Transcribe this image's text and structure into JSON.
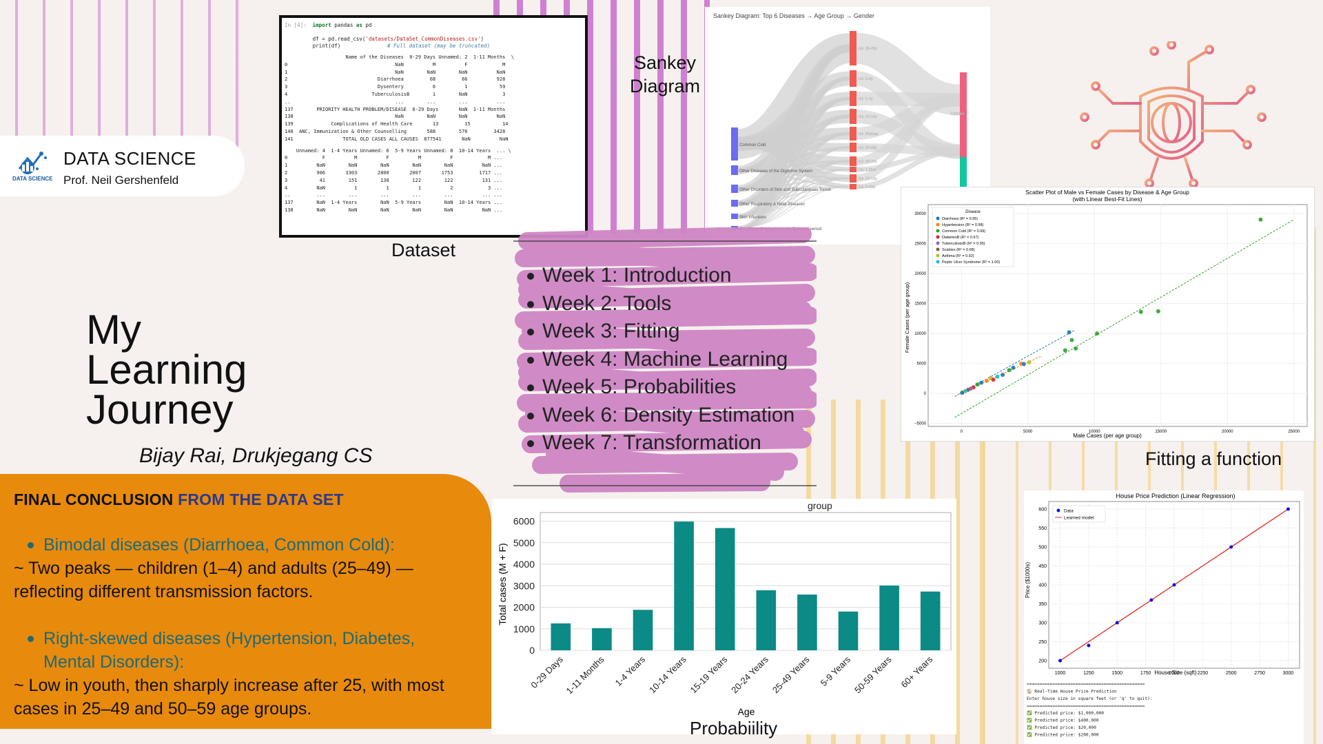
{
  "brand": {
    "name": "DATA SCIENCE",
    "professor": "Prof. Neil Gershenfeld",
    "logo_text": "DATA SCIENCE"
  },
  "title_lines": [
    "My",
    "Learning",
    "Journey"
  ],
  "author": "Bijay Rai, Drukjegang CS",
  "conclusion": {
    "title_a": "FINAL CONCLUSION",
    "title_b": "FROM THE DATA SET",
    "points": [
      {
        "bullet": "Bimodal diseases (Diarrhoea, Common Cold):",
        "text": "~ Two peaks — children (1–4) and adults (25–49) — reflecting different transmission factors."
      },
      {
        "bullet": "Right-skewed diseases (Hypertension, Diabetes, Mental Disorders):",
        "text": "~ Low in youth, then sharply increase after 25, with most cases in 25–49 and 50–59 age groups."
      }
    ]
  },
  "captions": {
    "dataset": "Dataset",
    "sankey_line1": "Sankey",
    "sankey_line2": "Diagram",
    "fitting": "Fitting a function",
    "probability": "Probabiility"
  },
  "weeks": [
    "Week 1: Introduction",
    "Week 2: Tools",
    "Week 3: Fitting",
    "Week 4: Machine Learning",
    "Week 5: Probabilities",
    "Week 6: Density Estimation",
    "Week 7: Transformation"
  ],
  "dataset_code": {
    "prompt": "In [4]:",
    "line1_kw": "import",
    "line1_rest": " pandas ",
    "line1_kw2": "as",
    "line1_end": " pd",
    "line2a": "df = pd.read_csv(",
    "line2str": "'datasets/DataSet_CommonDiseases.csv'",
    "line2b": ")",
    "line3": "print(df)",
    "line3comment": "# Full dataset (may be truncated)",
    "table1": [
      "                     Name of the Diseases  0-29 Days Unnamed: 2  1-11 Months  \\",
      "0                                     NaN          M          F            M",
      "1                                     NaN        NaN        NaN          NaN",
      "2                               Diarrhoea         68         66          928",
      "3                               Dysentery          6          1           59",
      "4                             TuberculosisB        1        NaN            3",
      "..                                    ...        ...        ...          ...",
      "137        PRIORITY HEALTH PROBLEM/DISEASE  0-29 Days       NaN  1-11 Months",
      "138                                   NaN        NaN        NaN          NaN",
      "139             Complications of Health Care       13         15           14",
      "140  ANC, Immunization & Other Counselling       588        576         3428",
      "141                 TOTAL OLD CASES ALL CAUSES  877541       NaN          NaN"
    ],
    "table2": [
      "    Unnamed: 4  1-4 Years Unnamed: 6  5-9 Years Unnamed: 8  10-14 Years  ... \\",
      "0            F          M          F          M          F            M ...",
      "1          NaN        NaN        NaN        NaN        NaN          NaN ...",
      "2          906       3303       2800       2007       1753         1717 ...",
      "3           41        151        138        122        122          131 ...",
      "4          NaN          1          1          1          2            3 ...",
      "..         ...        ...        ...        ...        ...          ... ...",
      "137        NaN  1-4 Years        NaN  5-9 Years        NaN  10-14 Years ...",
      "138        NaN        NaN        NaN        NaN        NaN          NaN ..."
    ]
  },
  "sankey": {
    "title": "Sankey Diagram: Top 6 Diseases → Age Group → Gender",
    "sources": [
      "Common Cold",
      "Other Diseases of the Digestive System",
      "Other Disorders of Skin and Subcutaneous Tissue",
      "Other Respiratory & Nose Diseases",
      "Skin Infections",
      "Conditions Originating in the Perinatal period"
    ],
    "ages": [
      "AG: 25-49y",
      "AG: 5-9y",
      "AG: 1-4y",
      "AG: 10-14y",
      "AG: 60plusy",
      "AG: 50-59y",
      "AG: 20-24y",
      "AG: 1-11m",
      "AG: 15-19y",
      "AG: 0-29d"
    ],
    "genders": [
      "Gender: F"
    ],
    "colors": {
      "source": "#6b6cf0",
      "age": "#ef5b4e",
      "female": "#f0607e",
      "male": "#12c6a0"
    }
  },
  "scatter": {
    "title_line1": "Scatter Plot of Male vs Female Cases by Disease & Age Group",
    "title_line2": "(with Linear Best-Fit Lines)",
    "xlabel": "Male Cases (per age group)",
    "ylabel": "Female Cases (per age group)",
    "legend_title": "Disease",
    "legend": [
      {
        "label": "Diarrhoea (R² = 0.95)",
        "color": "#1f77b4"
      },
      {
        "label": "Hypertension (R² = 0.98)",
        "color": "#ff7f0e"
      },
      {
        "label": "Common Cold (R² = 0.99)",
        "color": "#2ca02c"
      },
      {
        "label": "DiabetesB (R² = 0.97)",
        "color": "#d62728"
      },
      {
        "label": "TuberculosisB (R² = 0.95)",
        "color": "#9467bd"
      },
      {
        "label": "Scabies (R² = 0.68)",
        "color": "#8c564b"
      },
      {
        "label": "Asthma (R² = 0.92)",
        "color": "#bcbd22"
      },
      {
        "label": "Peptic Ulcer Syndrome (R² = 1.00)",
        "color": "#17becf"
      }
    ],
    "x_ticks": [
      "0",
      "5000",
      "10000",
      "15000",
      "20000",
      "25000"
    ],
    "y_ticks": [
      "30000",
      "25000",
      "20000",
      "15000",
      "10000",
      "5000",
      "0",
      "−5000"
    ],
    "points": [
      [
        22500,
        29000,
        "#2ca02c"
      ],
      [
        14800,
        13700,
        "#2ca02c"
      ],
      [
        13500,
        13600,
        "#2ca02c"
      ],
      [
        10200,
        10000,
        "#2ca02c"
      ],
      [
        8300,
        8900,
        "#2ca02c"
      ],
      [
        8600,
        7500,
        "#2ca02c"
      ],
      [
        7800,
        7200,
        "#2ca02c"
      ],
      [
        8100,
        10200,
        "#1f77b4"
      ],
      [
        5100,
        5200,
        "#bcbd22"
      ],
      [
        4500,
        5000,
        "#ff7f0e"
      ],
      [
        3900,
        4300,
        "#1f77b4"
      ],
      [
        3600,
        3900,
        "#2ca02c"
      ],
      [
        3100,
        3100,
        "#1f77b4"
      ],
      [
        2700,
        2800,
        "#17becf"
      ],
      [
        2200,
        2600,
        "#bcbd22"
      ],
      [
        1900,
        2100,
        "#ff7f0e"
      ],
      [
        1500,
        1800,
        "#1f77b4"
      ],
      [
        1200,
        1500,
        "#2ca02c"
      ],
      [
        900,
        1000,
        "#d62728"
      ],
      [
        700,
        800,
        "#9467bd"
      ],
      [
        500,
        600,
        "#8c564b"
      ],
      [
        300,
        400,
        "#17becf"
      ],
      [
        100,
        200,
        "#bcbd22"
      ],
      [
        50,
        100,
        "#1f77b4"
      ],
      [
        4700,
        4900,
        "#1f77b4"
      ],
      [
        2400,
        2300,
        "#d62728"
      ]
    ]
  },
  "bar_chart": {
    "title_visible": "group",
    "xlabel": "Age",
    "ylabel": "Total cases (M + F)",
    "categories": [
      "0-29 Days",
      "1-11 Months",
      "1-4 Years",
      "10-14 Years",
      "15-19 Years",
      "20-24 Years",
      "25-49 Years",
      "5-9 Years",
      "50-59 Years",
      "60+ Years"
    ],
    "values": [
      1250,
      1030,
      1880,
      5980,
      5680,
      2790,
      2590,
      1800,
      3010,
      2730
    ],
    "ylim": [
      0,
      6400
    ],
    "y_ticks": [
      "0",
      "1000",
      "2000",
      "3000",
      "4000",
      "5000",
      "6000"
    ],
    "color": "#0b8a86"
  },
  "regression": {
    "title": "House Price Prediction (Linear Regression)",
    "xlabel": "House Size (sqft)",
    "ylabel": "Price ($1000s)",
    "legend_data": "Data",
    "legend_model": "Learned model",
    "x_ticks": [
      "1000",
      "1250",
      "1500",
      "1750",
      "2000",
      "2250",
      "2500",
      "2750",
      "3000"
    ],
    "y_ticks": [
      "600",
      "550",
      "500",
      "450",
      "400",
      "350",
      "300",
      "250",
      "200"
    ],
    "points": [
      [
        1000,
        200
      ],
      [
        1250,
        240
      ],
      [
        1500,
        300
      ],
      [
        1800,
        360
      ],
      [
        2000,
        400
      ],
      [
        2500,
        500
      ],
      [
        3000,
        600
      ]
    ],
    "console": [
      "==============================================",
      "🏠 Real-Time House Price Prediction",
      "Enter house size in square feet (or 'q' to quit):",
      "==============================================",
      "✅ Predicted price: $1,000,000",
      "✅ Predicted price: $400,000",
      "✅ Predicted price: $20,000",
      "✅ Predicted price: $200,000"
    ]
  }
}
